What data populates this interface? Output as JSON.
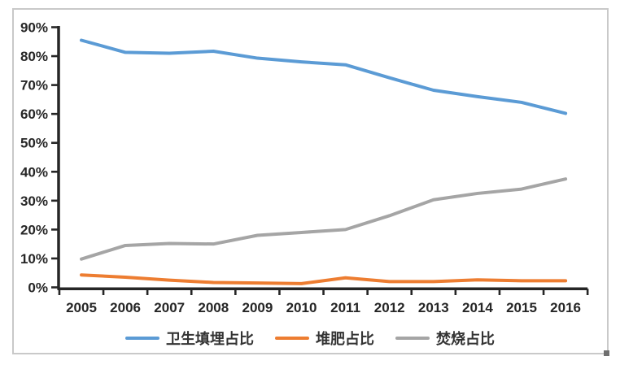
{
  "chart_data": {
    "type": "line",
    "categories": [
      "2005",
      "2006",
      "2007",
      "2008",
      "2009",
      "2010",
      "2011",
      "2012",
      "2013",
      "2014",
      "2015",
      "2016"
    ],
    "series": [
      {
        "id": "landfill",
        "name": "卫生填埋占比",
        "color": "#5B9BD5",
        "values": [
          85.5,
          81.3,
          81.0,
          81.7,
          79.3,
          78.0,
          77.0,
          72.5,
          68.2,
          66.0,
          64.0,
          60.2
        ]
      },
      {
        "id": "compost",
        "name": "堆肥占比",
        "color": "#ED7D31",
        "values": [
          4.3,
          3.5,
          2.5,
          1.7,
          1.5,
          1.3,
          3.3,
          2.0,
          2.0,
          2.6,
          2.3,
          2.3
        ]
      },
      {
        "id": "incineration",
        "name": "焚烧占比",
        "color": "#A5A5A5",
        "values": [
          9.8,
          14.5,
          15.2,
          15.0,
          18.0,
          19.0,
          20.0,
          24.8,
          30.3,
          32.5,
          34.0,
          37.5
        ]
      }
    ],
    "title": "",
    "xlabel": "",
    "ylabel": "",
    "y_ticks": [
      "90%",
      "80%",
      "70%",
      "60%",
      "50%",
      "40%",
      "30%",
      "20%",
      "10%",
      "0%"
    ],
    "ylim": [
      0,
      90
    ],
    "grid": false,
    "legend_position": "bottom"
  },
  "colors": {
    "axis": "#262626",
    "tick_label": "#262626",
    "border": "#c9c9c9",
    "handle": "#6f6f6f"
  }
}
